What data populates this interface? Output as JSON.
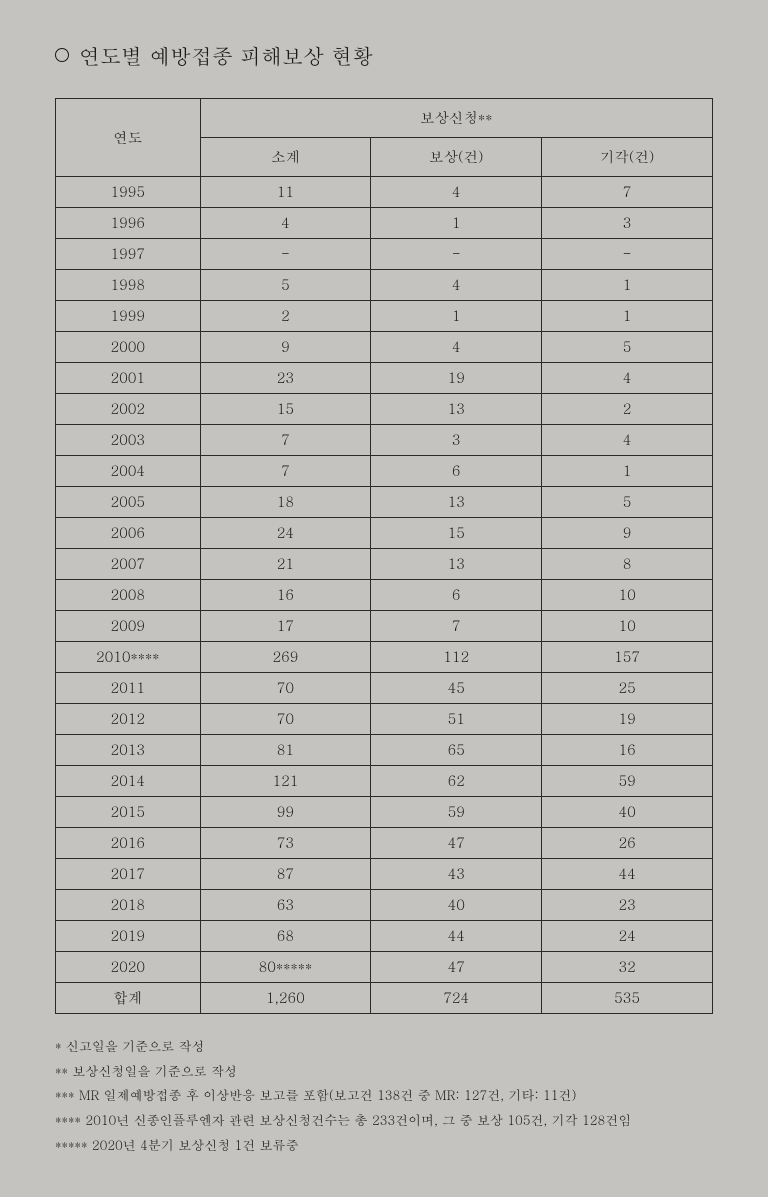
{
  "title": "연도별 예방접종 피해보상 현황",
  "table": {
    "header": {
      "year": "연도",
      "claims_group": "보상신청**",
      "subtotal": "소계",
      "compensated": "보상(건)",
      "rejected": "기각(건)"
    },
    "rows": [
      {
        "year": "1995",
        "subtotal": "11",
        "compensated": "4",
        "rejected": "7"
      },
      {
        "year": "1996",
        "subtotal": "4",
        "compensated": "1",
        "rejected": "3"
      },
      {
        "year": "1997",
        "subtotal": "-",
        "compensated": "-",
        "rejected": "-"
      },
      {
        "year": "1998",
        "subtotal": "5",
        "compensated": "4",
        "rejected": "1"
      },
      {
        "year": "1999",
        "subtotal": "2",
        "compensated": "1",
        "rejected": "1"
      },
      {
        "year": "2000",
        "subtotal": "9",
        "compensated": "4",
        "rejected": "5"
      },
      {
        "year": "2001",
        "subtotal": "23",
        "compensated": "19",
        "rejected": "4"
      },
      {
        "year": "2002",
        "subtotal": "15",
        "compensated": "13",
        "rejected": "2"
      },
      {
        "year": "2003",
        "subtotal": "7",
        "compensated": "3",
        "rejected": "4"
      },
      {
        "year": "2004",
        "subtotal": "7",
        "compensated": "6",
        "rejected": "1"
      },
      {
        "year": "2005",
        "subtotal": "18",
        "compensated": "13",
        "rejected": "5"
      },
      {
        "year": "2006",
        "subtotal": "24",
        "compensated": "15",
        "rejected": "9"
      },
      {
        "year": "2007",
        "subtotal": "21",
        "compensated": "13",
        "rejected": "8"
      },
      {
        "year": "2008",
        "subtotal": "16",
        "compensated": "6",
        "rejected": "10"
      },
      {
        "year": "2009",
        "subtotal": "17",
        "compensated": "7",
        "rejected": "10"
      },
      {
        "year": "2010****",
        "subtotal": "269",
        "compensated": "112",
        "rejected": "157"
      },
      {
        "year": "2011",
        "subtotal": "70",
        "compensated": "45",
        "rejected": "25"
      },
      {
        "year": "2012",
        "subtotal": "70",
        "compensated": "51",
        "rejected": "19"
      },
      {
        "year": "2013",
        "subtotal": "81",
        "compensated": "65",
        "rejected": "16"
      },
      {
        "year": "2014",
        "subtotal": "121",
        "compensated": "62",
        "rejected": "59"
      },
      {
        "year": "2015",
        "subtotal": "99",
        "compensated": "59",
        "rejected": "40"
      },
      {
        "year": "2016",
        "subtotal": "73",
        "compensated": "47",
        "rejected": "26"
      },
      {
        "year": "2017",
        "subtotal": "87",
        "compensated": "43",
        "rejected": "44"
      },
      {
        "year": "2018",
        "subtotal": "63",
        "compensated": "40",
        "rejected": "23"
      },
      {
        "year": "2019",
        "subtotal": "68",
        "compensated": "44",
        "rejected": "24"
      },
      {
        "year": "2020",
        "subtotal": "80*****",
        "compensated": "47",
        "rejected": "32"
      }
    ],
    "total": {
      "year": "합계",
      "subtotal": "1,260",
      "compensated": "724",
      "rejected": "535"
    }
  },
  "footnotes": [
    "* 신고일을 기준으로 작성",
    "** 보상신청일을 기준으로 작성",
    "*** MR 일제예방접종 후 이상반응 보고를 포함(보고건 138건 중 MR: 127건, 기타: 11건)",
    "**** 2010년 신종인플루엔자 관련 보상신청건수는 총 233건이며, 그 중 보상 105건, 기각 128건임",
    "***** 2020년 4분기 보상신청 1건 보류중"
  ],
  "styling": {
    "page_bg": "#c5c3c0",
    "text_color": "#1a1a1a",
    "border_color": "#2a2a2a",
    "title_fontsize": 21,
    "cell_fontsize": 14.5,
    "footnote_fontsize": 13
  }
}
